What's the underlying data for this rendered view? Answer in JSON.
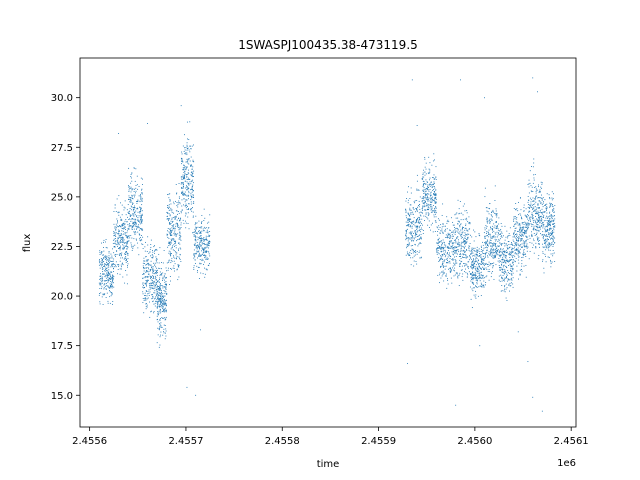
{
  "chart_data": {
    "type": "scatter",
    "title": "1SWASPJ100435.38-473119.5",
    "xlabel": "time",
    "ylabel": "flux",
    "x_offset_label": "1e6",
    "xlim": [
      2.45559,
      2.456105
    ],
    "ylim": [
      13.4,
      32.0
    ],
    "x_ticks": [
      2.4556,
      2.4557,
      2.4558,
      2.4559,
      2.456,
      2.4561
    ],
    "x_tick_labels": [
      "2.4556",
      "2.4557",
      "2.4558",
      "2.4559",
      "2.4560",
      "2.4561"
    ],
    "y_ticks": [
      15.0,
      17.5,
      20.0,
      22.5,
      25.0,
      27.5,
      30.0
    ],
    "y_tick_labels": [
      "15.0",
      "17.5",
      "20.0",
      "22.5",
      "25.0",
      "27.5",
      "30.0"
    ],
    "grid": false,
    "marker_color": "#1f77b4",
    "series": [
      {
        "segments": [
          {
            "x_start": 2.45561,
            "x_end": 2.455625,
            "y_center": 21.2,
            "y_spread": 2.8
          },
          {
            "x_start": 2.455625,
            "x_end": 2.45564,
            "y_center": 22.8,
            "y_spread": 3.4
          },
          {
            "x_start": 2.45564,
            "x_end": 2.455655,
            "y_center": 24.2,
            "y_spread": 3.6
          },
          {
            "x_start": 2.455655,
            "x_end": 2.45567,
            "y_center": 21.0,
            "y_spread": 3.5
          },
          {
            "x_start": 2.45567,
            "x_end": 2.45568,
            "y_center": 19.8,
            "y_spread": 3.6
          },
          {
            "x_start": 2.45568,
            "x_end": 2.455695,
            "y_center": 23.2,
            "y_spread": 4.0
          },
          {
            "x_start": 2.455695,
            "x_end": 2.455708,
            "y_center": 25.8,
            "y_spread": 4.2
          },
          {
            "x_start": 2.455708,
            "x_end": 2.455725,
            "y_center": 22.6,
            "y_spread": 2.6
          },
          {
            "x_start": 2.455928,
            "x_end": 2.455945,
            "y_center": 23.5,
            "y_spread": 3.6
          },
          {
            "x_start": 2.455945,
            "x_end": 2.45596,
            "y_center": 25.0,
            "y_spread": 3.2
          },
          {
            "x_start": 2.45596,
            "x_end": 2.455978,
            "y_center": 22.4,
            "y_spread": 3.0
          },
          {
            "x_start": 2.455978,
            "x_end": 2.455995,
            "y_center": 22.6,
            "y_spread": 3.6
          },
          {
            "x_start": 2.455995,
            "x_end": 2.45601,
            "y_center": 21.5,
            "y_spread": 3.0
          },
          {
            "x_start": 2.45601,
            "x_end": 2.456025,
            "y_center": 22.8,
            "y_spread": 3.6
          },
          {
            "x_start": 2.456025,
            "x_end": 2.45604,
            "y_center": 21.8,
            "y_spread": 3.2
          },
          {
            "x_start": 2.45604,
            "x_end": 2.456055,
            "y_center": 23.0,
            "y_spread": 3.4
          },
          {
            "x_start": 2.456055,
            "x_end": 2.45607,
            "y_center": 24.2,
            "y_spread": 3.8
          },
          {
            "x_start": 2.45607,
            "x_end": 2.456083,
            "y_center": 23.4,
            "y_spread": 3.4
          }
        ],
        "outliers": [
          [
            2.45563,
            28.2
          ],
          [
            2.45566,
            28.7
          ],
          [
            2.455695,
            29.6
          ],
          [
            2.455701,
            15.4
          ],
          [
            2.45571,
            15.0
          ],
          [
            2.455715,
            18.3
          ],
          [
            2.455935,
            30.9
          ],
          [
            2.45594,
            28.6
          ],
          [
            2.455948,
            26.9
          ],
          [
            2.455985,
            30.9
          ],
          [
            2.456005,
            17.5
          ],
          [
            2.45601,
            30.0
          ],
          [
            2.456045,
            18.2
          ],
          [
            2.45606,
            31.0
          ],
          [
            2.45607,
            14.2
          ],
          [
            2.45606,
            14.9
          ],
          [
            2.456065,
            30.3
          ],
          [
            2.456055,
            16.7
          ],
          [
            2.45598,
            14.5
          ],
          [
            2.45593,
            16.6
          ]
        ]
      }
    ]
  }
}
